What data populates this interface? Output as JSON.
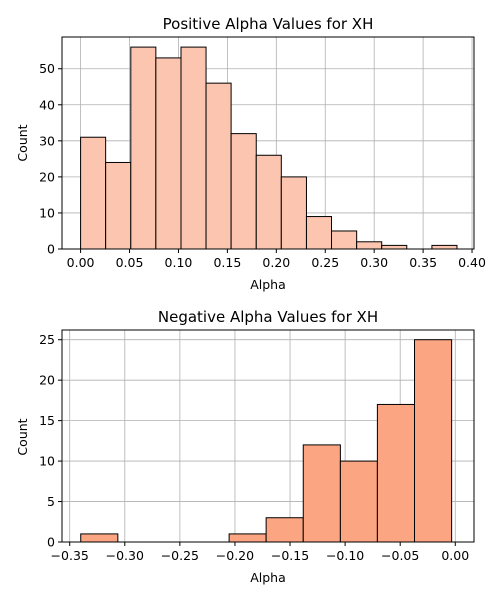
{
  "chart_data": [
    {
      "type": "histogram",
      "title": "Positive Alpha Values for XH",
      "xlabel": "Alpha",
      "ylabel": "Count",
      "xlim": [
        -0.019,
        0.402
      ],
      "ylim": [
        0,
        58.8
      ],
      "grid": true,
      "bar_color": "#fcc5b0",
      "bin_edges": [
        0.0,
        0.0256,
        0.0513,
        0.0769,
        0.1026,
        0.1282,
        0.1538,
        0.1795,
        0.2051,
        0.2308,
        0.2564,
        0.2821,
        0.3077,
        0.3333,
        0.359,
        0.3846
      ],
      "counts": [
        31,
        24,
        56,
        53,
        56,
        46,
        32,
        26,
        20,
        9,
        5,
        2,
        1,
        0,
        1
      ],
      "x_ticks": [
        0.0,
        0.05,
        0.1,
        0.15,
        0.2,
        0.25,
        0.3,
        0.35,
        0.4
      ],
      "x_tick_labels": [
        "0.00",
        "0.05",
        "0.10",
        "0.15",
        "0.20",
        "0.25",
        "0.30",
        "0.35",
        "0.40"
      ],
      "y_ticks": [
        0,
        10,
        20,
        30,
        40,
        50
      ],
      "y_tick_labels": [
        "0",
        "10",
        "20",
        "30",
        "40",
        "50"
      ]
    },
    {
      "type": "histogram",
      "title": "Negative Alpha Values for XH",
      "xlabel": "Alpha",
      "ylabel": "Count",
      "xlim": [
        -0.357,
        0.017
      ],
      "ylim": [
        0,
        26.2
      ],
      "grid": true,
      "bar_color": "#fca582",
      "bin_edges": [
        -0.34,
        -0.3063,
        -0.2727,
        -0.239,
        -0.2053,
        -0.1717,
        -0.138,
        -0.1043,
        -0.0707,
        -0.037,
        -0.0033
      ],
      "counts": [
        1,
        0,
        0,
        0,
        1,
        3,
        12,
        10,
        17,
        25
      ],
      "x_ticks": [
        -0.35,
        -0.3,
        -0.25,
        -0.2,
        -0.15,
        -0.1,
        -0.05,
        0.0
      ],
      "x_tick_labels": [
        "−0.35",
        "−0.30",
        "−0.25",
        "−0.20",
        "−0.15",
        "−0.10",
        "−0.05",
        "0.00"
      ],
      "y_ticks": [
        0,
        5,
        10,
        15,
        20,
        25
      ],
      "y_tick_labels": [
        "0",
        "5",
        "10",
        "15",
        "20",
        "25"
      ]
    }
  ]
}
